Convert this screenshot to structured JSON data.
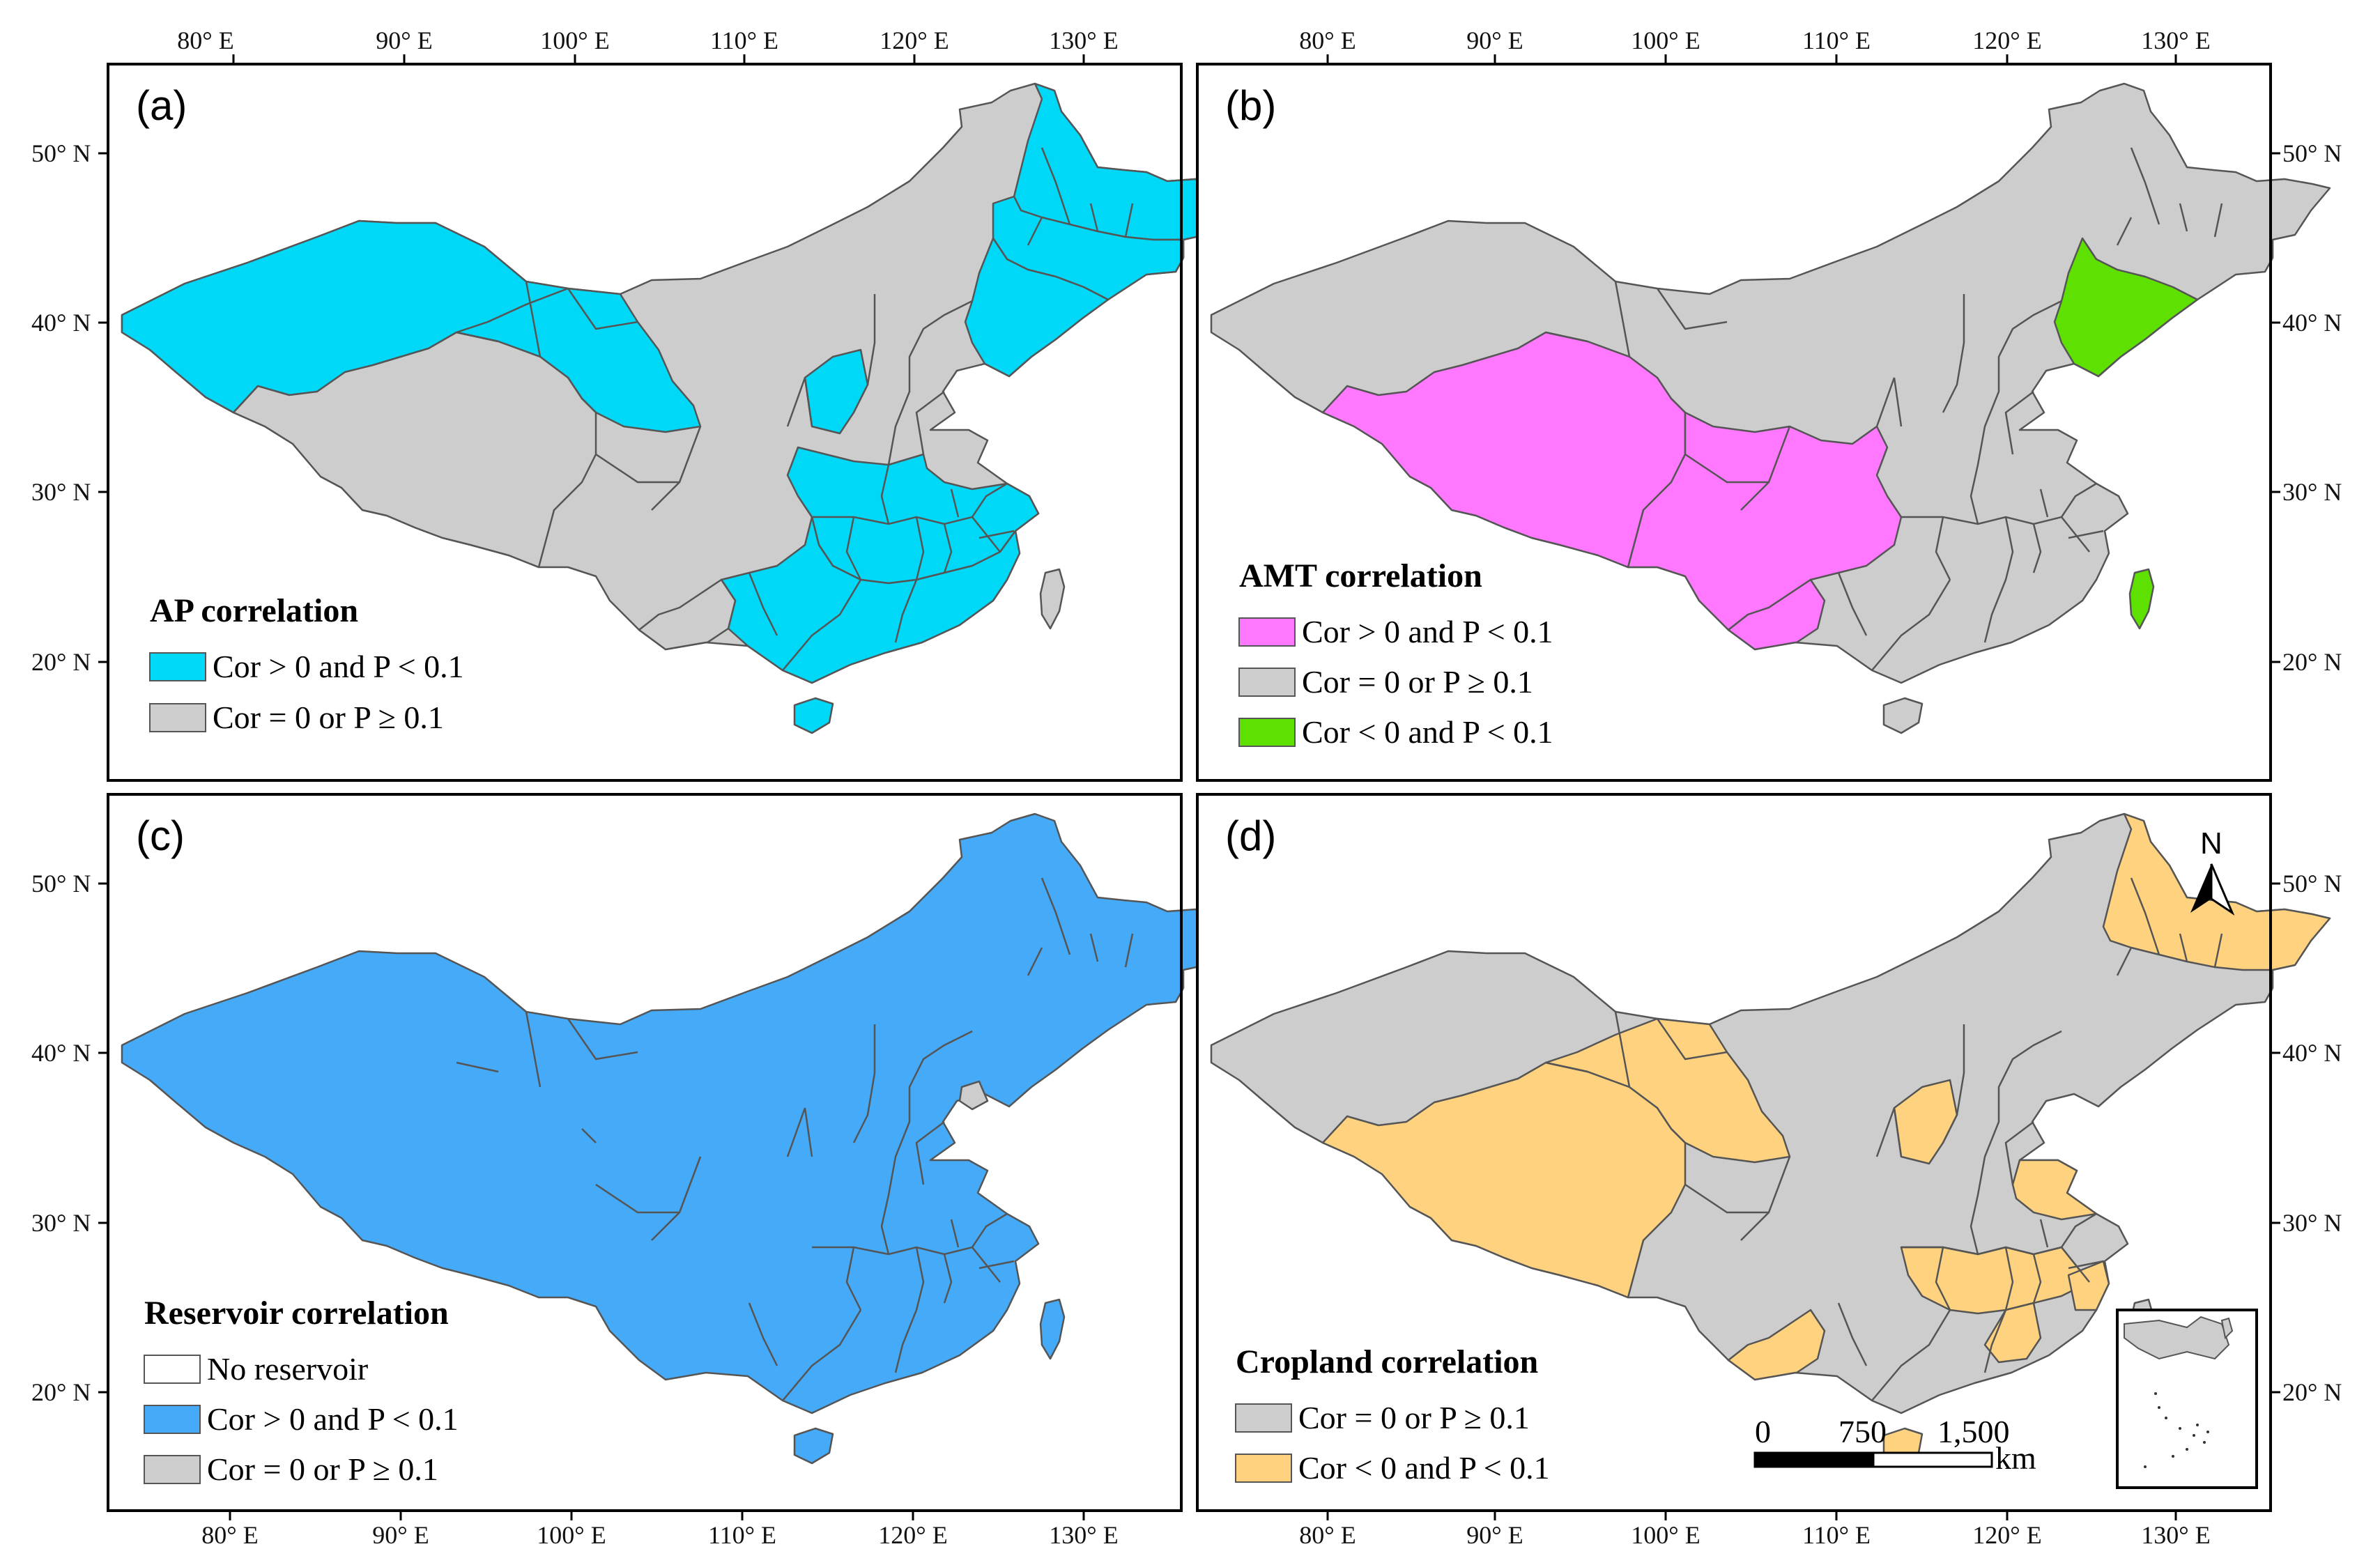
{
  "colors": {
    "gray": "#cdcdcd",
    "cyan": "#00d8f8",
    "magenta": "#ff78ff",
    "green": "#5ee000",
    "blue": "#45aaf8",
    "orange": "#ffd27f",
    "white": "#ffffff"
  },
  "axes": {
    "lon_labels": [
      "80° E",
      "90° E",
      "100° E",
      "110° E",
      "120° E",
      "130° E"
    ],
    "lat_labels": [
      "50° N",
      "40° N",
      "30° N",
      "20° N"
    ]
  },
  "panels": {
    "a": {
      "label": "(a)",
      "legend_title": "AP correlation",
      "legend_items": [
        {
          "label": "Cor > 0 and P < 0.1",
          "color": "#00d8f8"
        },
        {
          "label": "Cor = 0 or P ≥ 0.1",
          "color": "#cdcdcd"
        }
      ]
    },
    "b": {
      "label": "(b)",
      "legend_title": "AMT correlation",
      "legend_items": [
        {
          "label": "Cor > 0 and P < 0.1",
          "color": "#ff78ff"
        },
        {
          "label": "Cor = 0 or P ≥ 0.1",
          "color": "#cdcdcd"
        },
        {
          "label": "Cor < 0 and P < 0.1",
          "color": "#5ee000"
        }
      ]
    },
    "c": {
      "label": "(c)",
      "legend_title": "Reservoir correlation",
      "legend_items": [
        {
          "label": "No reservoir",
          "color": "#ffffff"
        },
        {
          "label": "Cor > 0 and P < 0.1",
          "color": "#45aaf8"
        },
        {
          "label": "Cor = 0 or P ≥ 0.1",
          "color": "#cdcdcd"
        }
      ]
    },
    "d": {
      "label": "(d)",
      "legend_title": "Cropland correlation",
      "legend_items": [
        {
          "label": "Cor = 0 or P ≥ 0.1",
          "color": "#cdcdcd"
        },
        {
          "label": "Cor < 0 and P < 0.1",
          "color": "#ffd27f"
        }
      ],
      "scale_labels": [
        "0",
        "750",
        "1,500"
      ],
      "scale_unit": "km",
      "north_label": "N"
    }
  }
}
